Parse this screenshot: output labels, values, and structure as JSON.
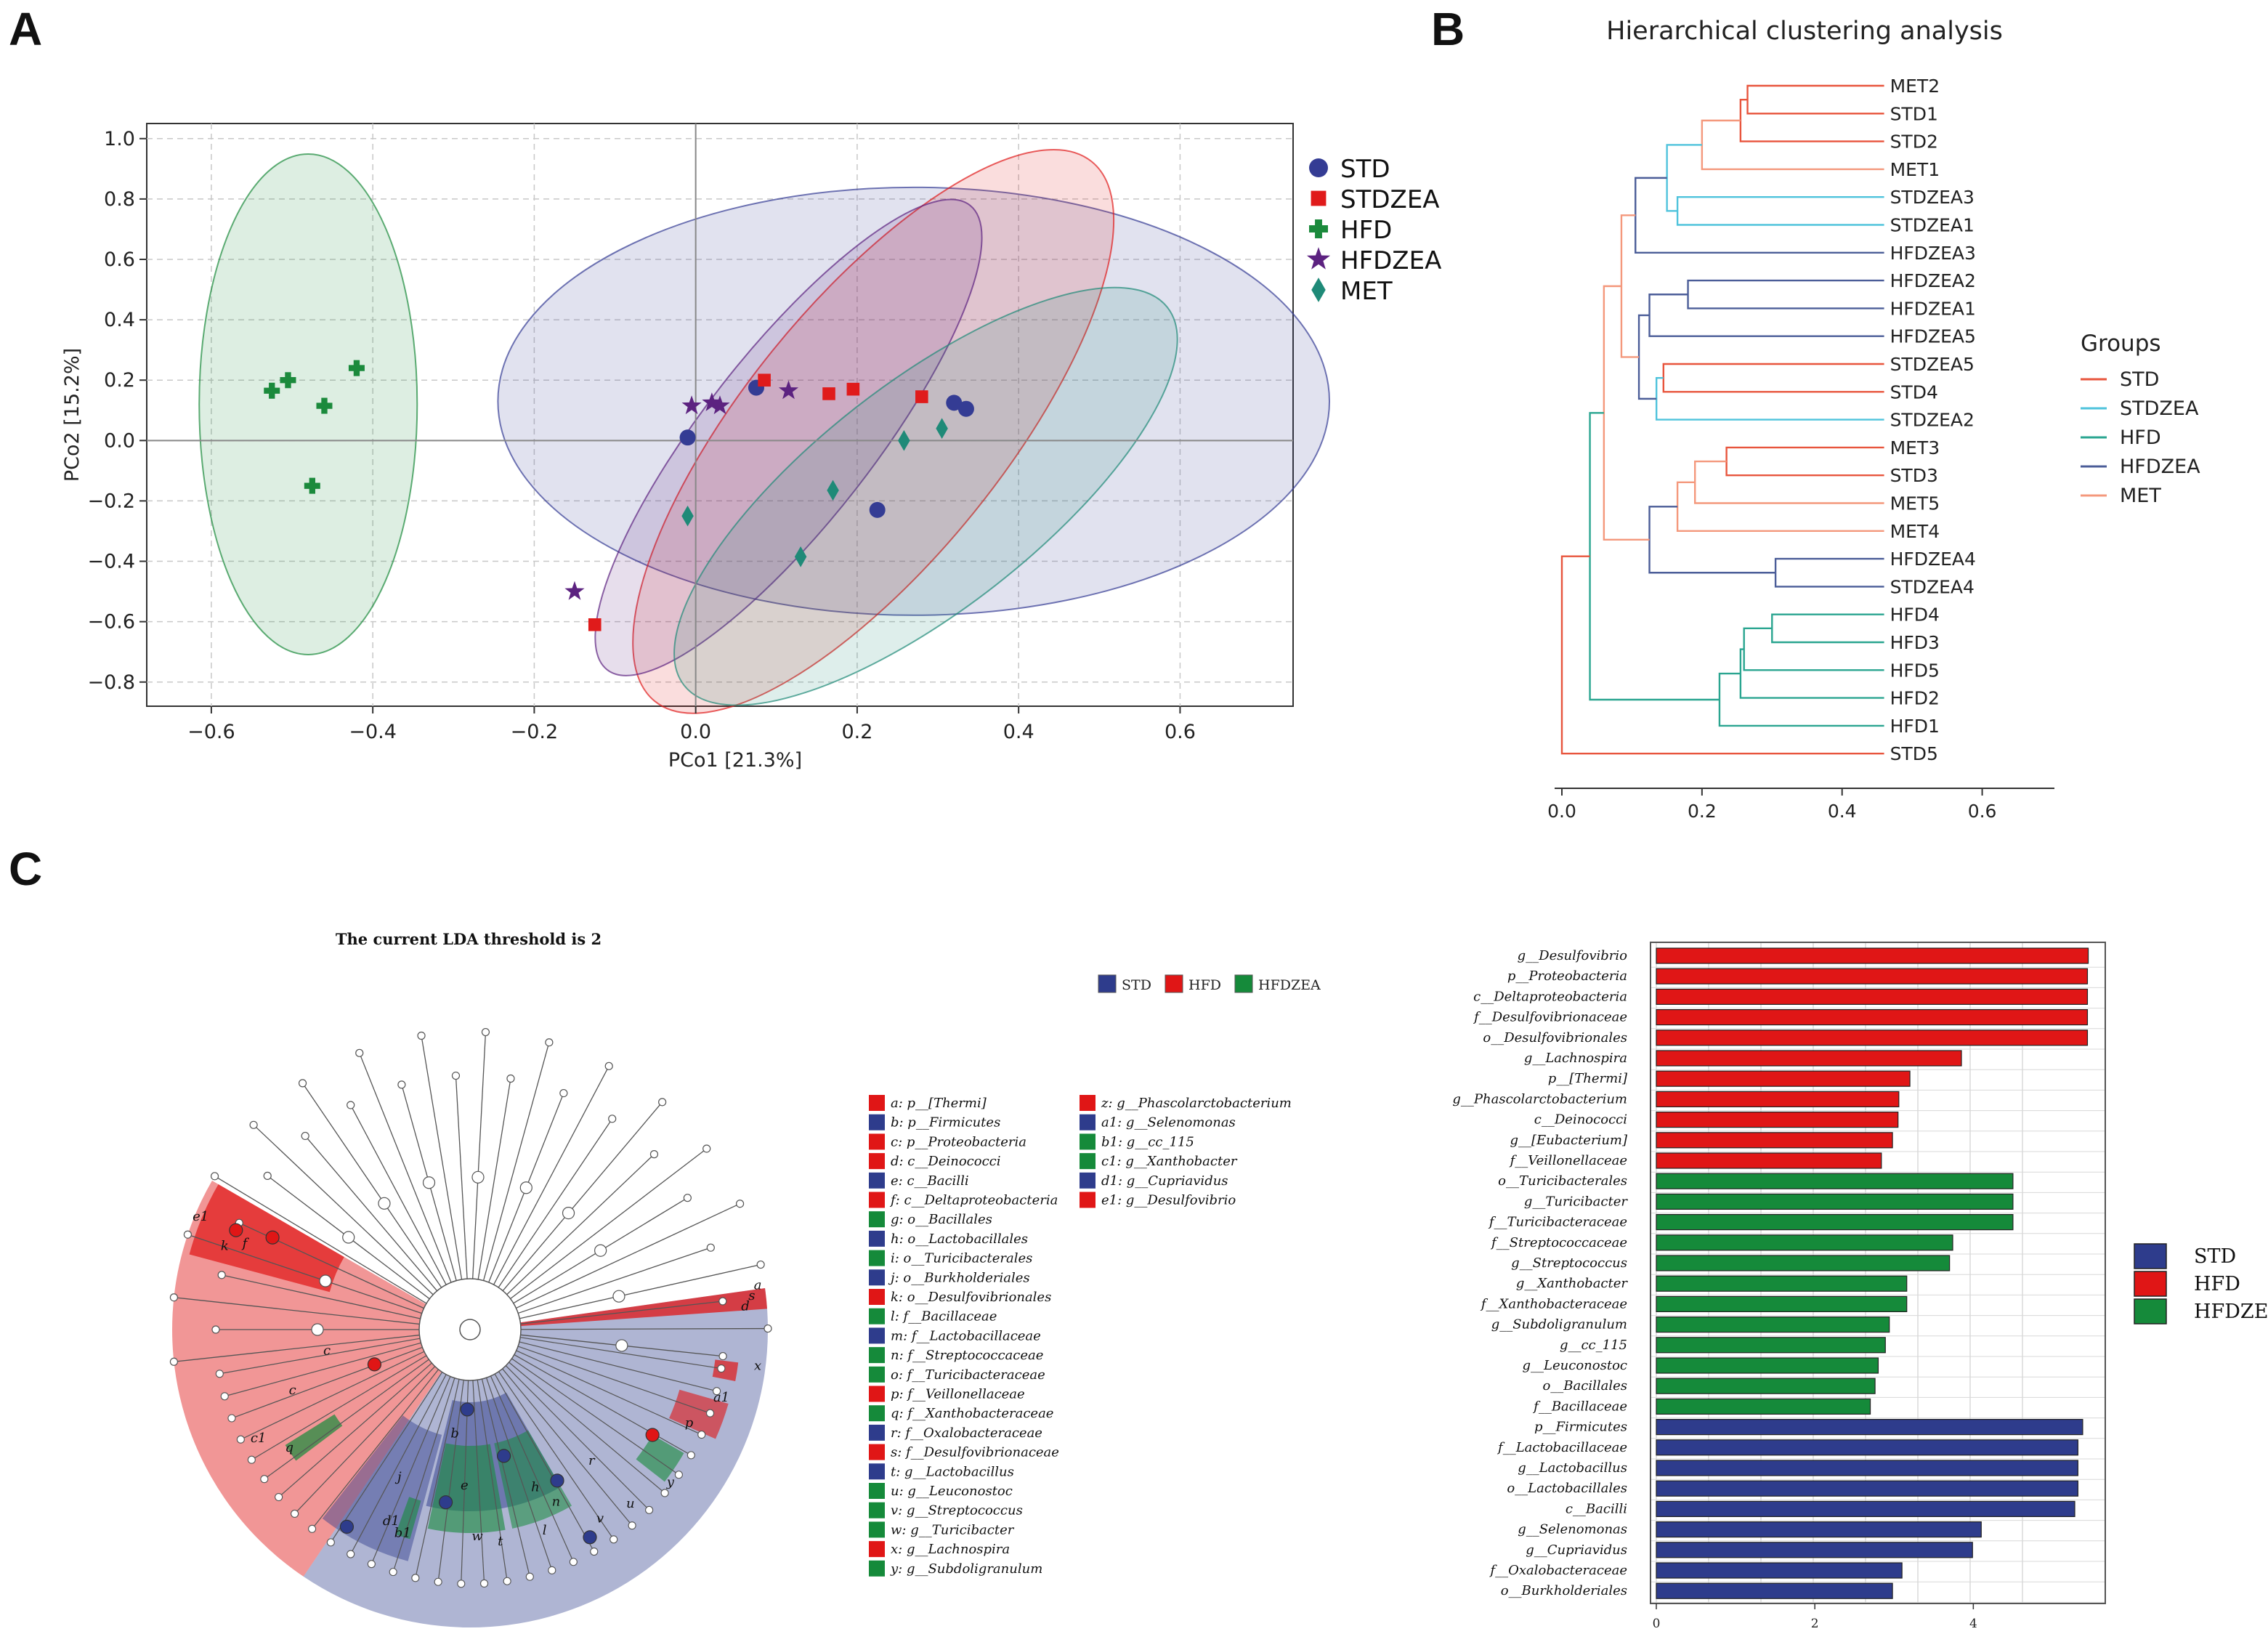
{
  "panels": {
    "a": "A",
    "b": "B",
    "c": "C"
  },
  "chart_data": [
    {
      "type": "scatter",
      "panel": "A",
      "xlabel": "PCo1 [21.3%]",
      "ylabel": "PCo2 [15.2%]",
      "xlim": [
        -0.68,
        0.74
      ],
      "ylim": [
        -0.88,
        1.05
      ],
      "xticks": [
        "-0.6",
        "-0.4",
        "-0.2",
        "0.0",
        "0.2",
        "0.4",
        "0.6"
      ],
      "yticks": [
        "1.0",
        "0.8",
        "0.6",
        "0.4",
        "0.2",
        "0.0",
        "-0.2",
        "-0.4",
        "-0.6",
        "-0.8"
      ],
      "series": [
        {
          "name": "STD",
          "color": "#343c94",
          "marker": "circle",
          "points": [
            [
              -0.01,
              0.01
            ],
            [
              0.075,
              0.175
            ],
            [
              0.32,
              0.125
            ],
            [
              0.335,
              0.105
            ],
            [
              0.225,
              -0.23
            ]
          ],
          "ellipse": {
            "cx": 0.27,
            "cy": 0.13,
            "rx": 0.515,
            "ry": 0.265,
            "angle": 0
          }
        },
        {
          "name": "STDZEA",
          "color": "#e01b1b",
          "marker": "square",
          "points": [
            [
              0.085,
              0.2
            ],
            [
              0.165,
              0.155
            ],
            [
              0.195,
              0.17
            ],
            [
              0.28,
              0.145
            ],
            [
              -0.125,
              -0.61
            ]
          ],
          "ellipse": {
            "cx": 0.22,
            "cy": 0.03,
            "rx": 0.43,
            "ry": 0.16,
            "angle": 51
          }
        },
        {
          "name": "HFD",
          "color": "#1b8a3c",
          "marker": "plus",
          "points": [
            [
              -0.525,
              0.165
            ],
            [
              -0.505,
              0.2
            ],
            [
              -0.46,
              0.115
            ],
            [
              -0.42,
              0.24
            ],
            [
              -0.475,
              -0.15
            ]
          ],
          "ellipse": {
            "cx": -0.48,
            "cy": 0.12,
            "rx": 0.135,
            "ry": 0.31,
            "angle": 0
          }
        },
        {
          "name": "HFDZEA",
          "color": "#5c2280",
          "marker": "star",
          "points": [
            [
              -0.005,
              0.115
            ],
            [
              0.02,
              0.125
            ],
            [
              0.03,
              0.115
            ],
            [
              0.115,
              0.165
            ],
            [
              -0.15,
              -0.5
            ]
          ],
          "ellipse": {
            "cx": 0.115,
            "cy": 0.01,
            "rx": 0.365,
            "ry": 0.105,
            "angle": 52
          }
        },
        {
          "name": "MET",
          "color": "#1f8a78",
          "marker": "diamond",
          "points": [
            [
              0.258,
              0.0
            ],
            [
              0.305,
              0.04
            ],
            [
              -0.01,
              -0.25
            ],
            [
              0.17,
              -0.165
            ],
            [
              0.13,
              -0.385
            ]
          ],
          "ellipse": {
            "cx": 0.285,
            "cy": -0.185,
            "rx": 0.38,
            "ry": 0.14,
            "angle": 38
          }
        }
      ]
    },
    {
      "type": "dendrogram",
      "panel": "B",
      "title": "Hierarchical clustering analysis",
      "xlim": [
        0,
        0.7
      ],
      "xticks": [
        "0.0",
        "0.2",
        "0.4",
        "0.6"
      ],
      "legend_title": "Groups",
      "groups": [
        {
          "name": "STD",
          "color": "#e8553d"
        },
        {
          "name": "STDZEA",
          "color": "#4fc3dc"
        },
        {
          "name": "HFD",
          "color": "#2aa590"
        },
        {
          "name": "HFDZEA",
          "color": "#4b5d98"
        },
        {
          "name": "MET",
          "color": "#f4987c"
        }
      ],
      "leaves": [
        {
          "name": "MET2",
          "group": "MET"
        },
        {
          "name": "STD1",
          "group": "STD"
        },
        {
          "name": "STD2",
          "group": "STD"
        },
        {
          "name": "MET1",
          "group": "MET"
        },
        {
          "name": "STDZEA3",
          "group": "STDZEA"
        },
        {
          "name": "STDZEA1",
          "group": "STDZEA"
        },
        {
          "name": "HFDZEA3",
          "group": "HFDZEA"
        },
        {
          "name": "HFDZEA2",
          "group": "HFDZEA"
        },
        {
          "name": "HFDZEA1",
          "group": "HFDZEA"
        },
        {
          "name": "HFDZEA5",
          "group": "HFDZEA"
        },
        {
          "name": "STDZEA5",
          "group": "STDZEA"
        },
        {
          "name": "STD4",
          "group": "STD"
        },
        {
          "name": "STDZEA2",
          "group": "STDZEA"
        },
        {
          "name": "MET3",
          "group": "MET"
        },
        {
          "name": "STD3",
          "group": "STD"
        },
        {
          "name": "MET5",
          "group": "MET"
        },
        {
          "name": "MET4",
          "group": "MET"
        },
        {
          "name": "HFDZEA4",
          "group": "HFDZEA"
        },
        {
          "name": "STDZEA4",
          "group": "STDZEA"
        },
        {
          "name": "HFD4",
          "group": "HFD"
        },
        {
          "name": "HFD3",
          "group": "HFD"
        },
        {
          "name": "HFD5",
          "group": "HFD"
        },
        {
          "name": "HFD2",
          "group": "HFD"
        },
        {
          "name": "HFD1",
          "group": "HFD"
        },
        {
          "name": "STD5",
          "group": "STD"
        }
      ],
      "merges": [
        {
          "a": "MET2",
          "b": "STD1",
          "h": 0.265,
          "color": "#e8553d"
        },
        {
          "a": "n1",
          "b": "STD2",
          "h": 0.255,
          "color": "#e8553d"
        },
        {
          "a": "n2",
          "b": "MET1",
          "h": 0.2,
          "color": "#f4987c"
        },
        {
          "a": "STDZEA3",
          "b": "STDZEA1",
          "h": 0.165,
          "color": "#4fc3dc"
        },
        {
          "a": "n3",
          "b": "n4",
          "h": 0.15,
          "color": "#4fc3dc"
        },
        {
          "a": "n5",
          "b": "HFDZEA3",
          "h": 0.105,
          "color": "#4b5d98"
        },
        {
          "a": "HFDZEA2",
          "b": "HFDZEA1",
          "h": 0.18,
          "color": "#4b5d98"
        },
        {
          "a": "n7",
          "b": "HFDZEA5",
          "h": 0.125,
          "color": "#4b5d98"
        },
        {
          "a": "STDZEA5",
          "b": "STD4",
          "h": 0.145,
          "color": "#e8553d"
        },
        {
          "a": "n9",
          "b": "STDZEA2",
          "h": 0.135,
          "color": "#4fc3dc"
        },
        {
          "a": "n8",
          "b": "n10",
          "h": 0.11,
          "color": "#4b5d98"
        },
        {
          "a": "n6",
          "b": "n11",
          "h": 0.085,
          "color": "#f4987c"
        },
        {
          "a": "MET3",
          "b": "STD3",
          "h": 0.235,
          "color": "#e8553d"
        },
        {
          "a": "n13",
          "b": "MET5",
          "h": 0.19,
          "color": "#f4987c"
        },
        {
          "a": "n14",
          "b": "MET4",
          "h": 0.165,
          "color": "#f4987c"
        },
        {
          "a": "HFDZEA4",
          "b": "STDZEA4",
          "h": 0.305,
          "color": "#4b5d98"
        },
        {
          "a": "n15",
          "b": "n16",
          "h": 0.125,
          "color": "#4b5d98"
        },
        {
          "a": "n12",
          "b": "n17",
          "h": 0.06,
          "color": "#f4987c"
        },
        {
          "a": "HFD4",
          "b": "HFD3",
          "h": 0.3,
          "color": "#2aa590"
        },
        {
          "a": "n19",
          "b": "HFD5",
          "h": 0.26,
          "color": "#2aa590"
        },
        {
          "a": "n20",
          "b": "HFD2",
          "h": 0.255,
          "color": "#2aa590"
        },
        {
          "a": "n21",
          "b": "HFD1",
          "h": 0.225,
          "color": "#2aa590"
        },
        {
          "a": "n18",
          "b": "n22",
          "h": 0.04,
          "color": "#2aa590"
        },
        {
          "a": "n23",
          "b": "STD5",
          "h": 0.0,
          "color": "#e8553d"
        }
      ]
    },
    {
      "type": "cladogram",
      "panel": "C",
      "title": "The current LDA threshold is 2",
      "legend": [
        {
          "name": "STD",
          "color": "#2e3c8c"
        },
        {
          "name": "HFD",
          "color": "#e01616"
        },
        {
          "name": "HFDZEA",
          "color": "#158a3a"
        }
      ],
      "key": [
        {
          "label": "a: p__[Thermi]",
          "group": "HFD"
        },
        {
          "label": "b: p__Firmicutes",
          "group": "STD"
        },
        {
          "label": "c: p__Proteobacteria",
          "group": "HFD"
        },
        {
          "label": "d: c__Deinococci",
          "group": "HFD"
        },
        {
          "label": "e: c__Bacilli",
          "group": "STD"
        },
        {
          "label": "f: c__Deltaproteobacteria",
          "group": "HFD"
        },
        {
          "label": "g: o__Bacillales",
          "group": "HFDZEA"
        },
        {
          "label": "h: o__Lactobacillales",
          "group": "STD"
        },
        {
          "label": "i: o__Turicibacterales",
          "group": "HFDZEA"
        },
        {
          "label": "j: o__Burkholderiales",
          "group": "STD"
        },
        {
          "label": "k: o__Desulfovibrionales",
          "group": "HFD"
        },
        {
          "label": "l: f__Bacillaceae",
          "group": "HFDZEA"
        },
        {
          "label": "m: f__Lactobacillaceae",
          "group": "STD"
        },
        {
          "label": "n: f__Streptococcaceae",
          "group": "HFDZEA"
        },
        {
          "label": "o: f__Turicibacteraceae",
          "group": "HFDZEA"
        },
        {
          "label": "p: f__Veillonellaceae",
          "group": "HFD"
        },
        {
          "label": "q: f__Xanthobacteraceae",
          "group": "HFDZEA"
        },
        {
          "label": "r: f__Oxalobacteraceae",
          "group": "STD"
        },
        {
          "label": "s: f__Desulfovibrionaceae",
          "group": "HFD"
        },
        {
          "label": "t: g__Lactobacillus",
          "group": "STD"
        },
        {
          "label": "u: g__Leuconostoc",
          "group": "HFDZEA"
        },
        {
          "label": "v: g__Streptococcus",
          "group": "HFDZEA"
        },
        {
          "label": "w: g__Turicibacter",
          "group": "HFDZEA"
        },
        {
          "label": "x: g__Lachnospira",
          "group": "HFD"
        },
        {
          "label": "y: g__Subdoligranulum",
          "group": "HFDZEA"
        },
        {
          "label": "z: g__Phascolarctobacterium",
          "group": "HFD"
        },
        {
          "label": "a1: g__Selenomonas",
          "group": "STD"
        },
        {
          "label": "b1: g__cc_115",
          "group": "HFDZEA"
        },
        {
          "label": "c1: g__Xanthobacter",
          "group": "HFDZEA"
        },
        {
          "label": "d1: g__Cupriavidus",
          "group": "STD"
        },
        {
          "label": "e1: g__Desulfovibrio",
          "group": "HFD"
        }
      ],
      "node_labels": [
        "e1",
        "c",
        "k",
        "f",
        "c",
        "q",
        "c1",
        "a",
        "s",
        "d",
        "b",
        "e",
        "j",
        "w",
        "t",
        "h",
        "n",
        "l",
        "p",
        "a1",
        "y",
        "x",
        "d1",
        "b1",
        "r",
        "v",
        "u"
      ]
    },
    {
      "type": "bar",
      "orientation": "horizontal",
      "panel": "C",
      "xlim": [
        0,
        5.5
      ],
      "xticks": [
        "0",
        "2",
        "4"
      ],
      "legend": [
        {
          "name": "STD",
          "color": "#2e3c8c"
        },
        {
          "name": "HFD",
          "color": "#e01616"
        },
        {
          "name": "HFDZEA",
          "color": "#158a3a"
        }
      ],
      "categories": [
        "g__Desulfovibrio",
        "p__Proteobacteria",
        "c__Deltaproteobacteria",
        "f__Desulfovibrionaceae",
        "o__Desulfovibrionales",
        "g__Lachnospira",
        "p__[Thermi]",
        "g__Phascolarctobacterium",
        "c__Deinococci",
        "g__[Eubacterium]",
        "f__Veillonellaceae",
        "o__Turicibacterales",
        "g__Turicibacter",
        "f__Turicibacteraceae",
        "f__Streptococcaceae",
        "g__Streptococcus",
        "g__Xanthobacter",
        "f__Xanthobacteraceae",
        "g__Subdoligranulum",
        "g__cc_115",
        "g__Leuconostoc",
        "o__Bacillales",
        "f__Bacillaceae",
        "p__Firmicutes",
        "f__Lactobacillaceae",
        "g__Lactobacillus",
        "o__Lactobacillales",
        "c__Bacilli",
        "g__Selenomonas",
        "g__Cupriavidus",
        "f__Oxalobacteraceae",
        "o__Burkholderiales"
      ],
      "values": [
        5.45,
        5.44,
        5.44,
        5.44,
        5.44,
        3.85,
        3.2,
        3.06,
        3.05,
        2.98,
        2.84,
        4.5,
        4.5,
        4.5,
        3.74,
        3.7,
        3.16,
        3.16,
        2.94,
        2.89,
        2.8,
        2.76,
        2.7,
        5.38,
        5.32,
        5.32,
        5.32,
        5.28,
        4.1,
        3.99,
        3.1,
        2.98
      ],
      "groups": [
        "HFD",
        "HFD",
        "HFD",
        "HFD",
        "HFD",
        "HFD",
        "HFD",
        "HFD",
        "HFD",
        "HFD",
        "HFD",
        "HFDZEA",
        "HFDZEA",
        "HFDZEA",
        "HFDZEA",
        "HFDZEA",
        "HFDZEA",
        "HFDZEA",
        "HFDZEA",
        "HFDZEA",
        "HFDZEA",
        "HFDZEA",
        "HFDZEA",
        "STD",
        "STD",
        "STD",
        "STD",
        "STD",
        "STD",
        "STD",
        "STD",
        "STD"
      ]
    }
  ]
}
